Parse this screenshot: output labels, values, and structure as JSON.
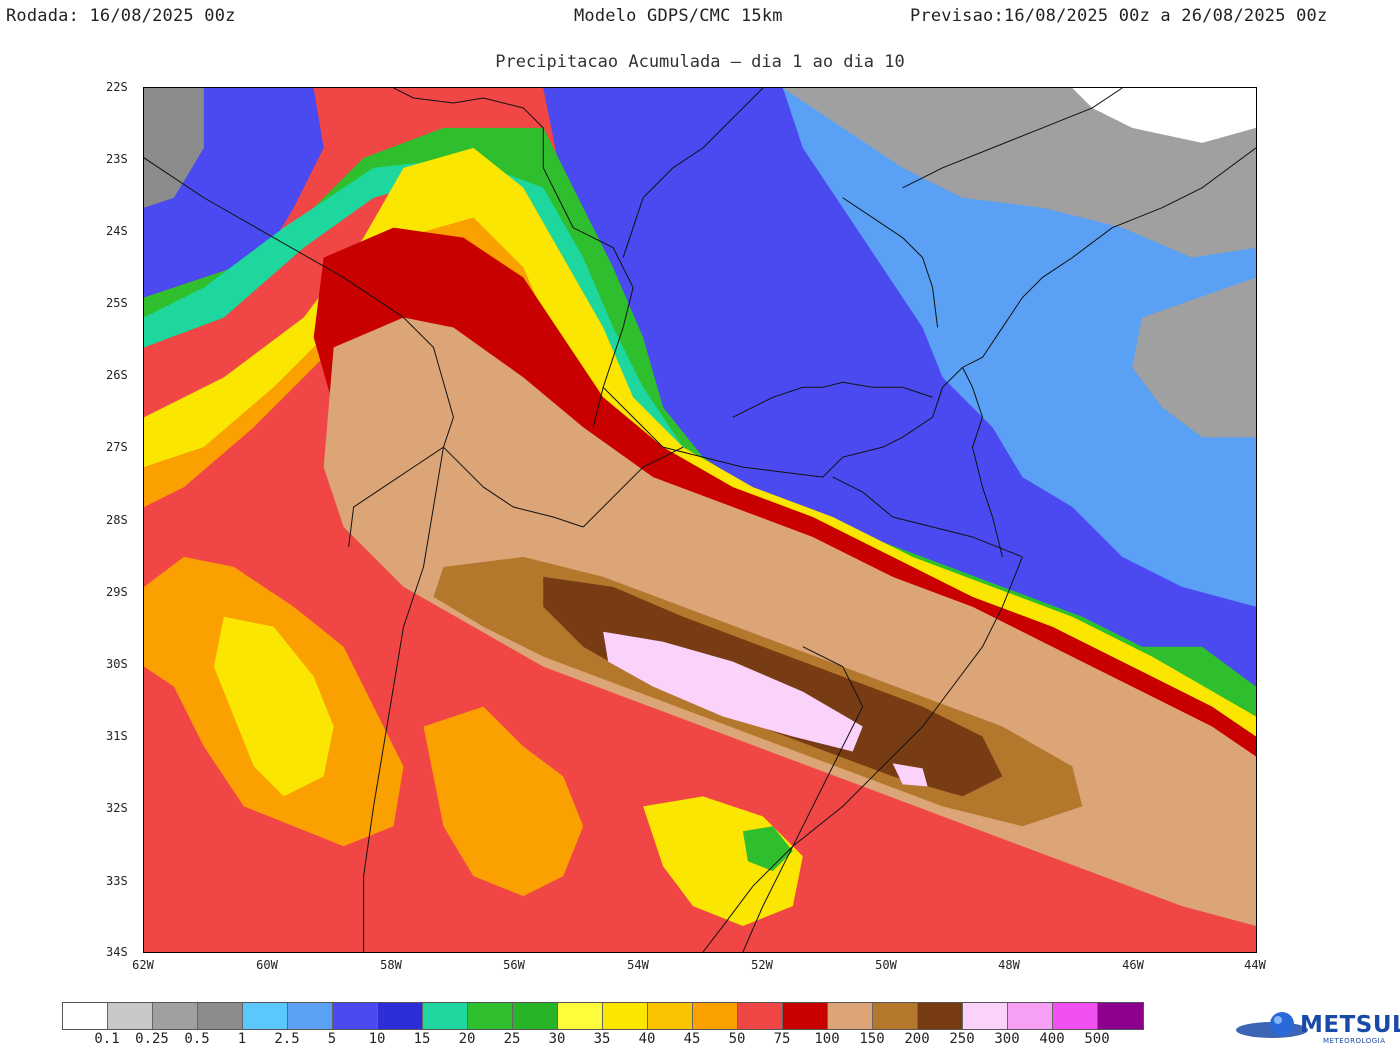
{
  "header": {
    "left": "Rodada: 16/08/2025 00z",
    "center": "Modelo GDPS/CMC 15km",
    "right": "Previsao:16/08/2025 00z a 26/08/2025 00z",
    "subtitle": "Precipitacao Acumulada – dia 1 ao dia 10"
  },
  "map": {
    "lat_labels": [
      "22S",
      "23S",
      "24S",
      "25S",
      "26S",
      "27S",
      "28S",
      "29S",
      "30S",
      "31S",
      "32S",
      "33S",
      "34S"
    ],
    "lon_labels": [
      "62W",
      "60W",
      "58W",
      "56W",
      "54W",
      "52W",
      "50W",
      "48W",
      "46W",
      "44W"
    ],
    "colors": {
      "very_light": "#c8c8c8",
      "light_gray": "#a0a0a0",
      "gray": "#8c8c8c",
      "light_blue": "#5ac8fa",
      "sky_blue": "#5aa0f5",
      "blue": "#4a4af0",
      "dark_blue": "#2e2ed8",
      "teal": "#1ed79e",
      "green": "#2ebe2e",
      "dark_green": "#28b428",
      "yellow_light": "#fdfd3c",
      "yellow": "#fae600",
      "gold": "#fac300",
      "orange": "#faa000",
      "red": "#f04646",
      "dark_red": "#c80000",
      "tan": "#dca578",
      "brown": "#b4782d",
      "dark_brown": "#783c14",
      "pink": "#fad2fa"
    }
  },
  "legend": {
    "colors": [
      "#ffffff",
      "#c8c8c8",
      "#a0a0a0",
      "#8c8c8c",
      "#5ac8fa",
      "#5aa0f5",
      "#4a4af0",
      "#2e2ed8",
      "#1ed79e",
      "#2ebe2e",
      "#28b428",
      "#fdfd3c",
      "#fae600",
      "#fac300",
      "#faa000",
      "#f04646",
      "#c80000",
      "#dca578",
      "#b4782d",
      "#783c14",
      "#fad2fa",
      "#f5a0f5",
      "#f050f0",
      "#8c008c"
    ],
    "labels": [
      "0.1",
      "0.25",
      "0.5",
      "1",
      "2.5",
      "5",
      "10",
      "15",
      "20",
      "25",
      "30",
      "35",
      "40",
      "45",
      "50",
      "75",
      "100",
      "150",
      "200",
      "250",
      "300",
      "400",
      "500"
    ]
  },
  "logo": {
    "name": "METSUL",
    "sub": "METEOROLOGIA",
    "icon": "globe-icon"
  }
}
